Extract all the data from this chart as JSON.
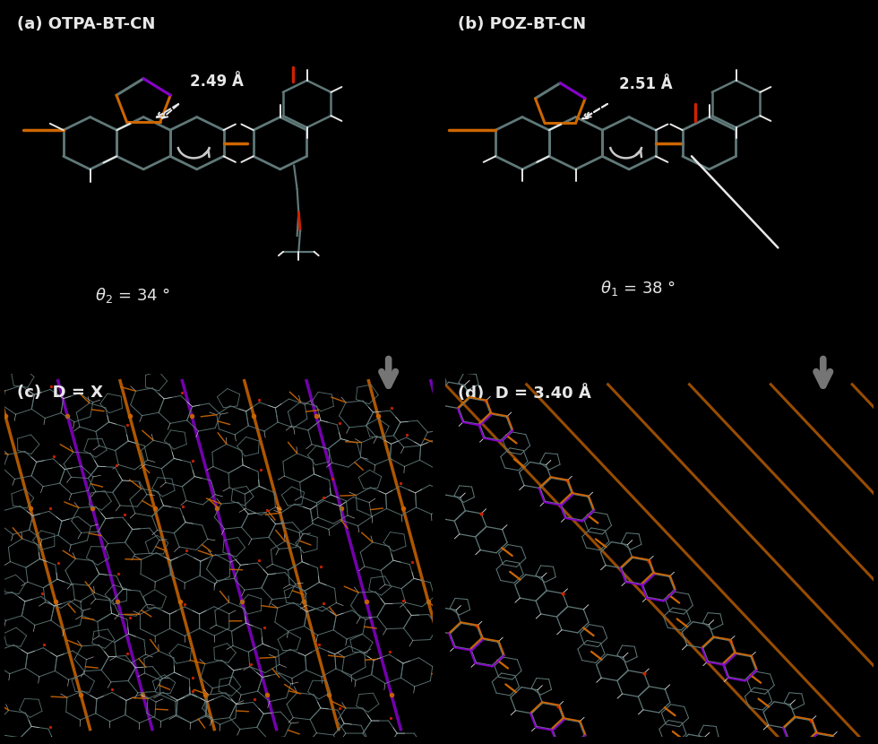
{
  "bg_color": "#000000",
  "divider_color": "#ffffff",
  "bond_color": "#607878",
  "h_color": "#e8e8e8",
  "o_color": "#cc2200",
  "purple_color": "#8800cc",
  "orange_color": "#cc6600",
  "gray_arrow": "#808080",
  "panels": [
    {
      "label": "(a) OTPA-BT-CN",
      "dist": "2.49 Å",
      "theta_label": "θ₂ = 34 °"
    },
    {
      "label": "(b) POZ-BT-CN",
      "dist": "2.51 Å",
      "theta_label": "θ₁ = 38 °"
    },
    {
      "label": "(c)  D = X"
    },
    {
      "label": "(d)  D = 3.40 Å"
    }
  ],
  "fig_width": 9.8,
  "fig_height": 8.3,
  "dpi": 100
}
